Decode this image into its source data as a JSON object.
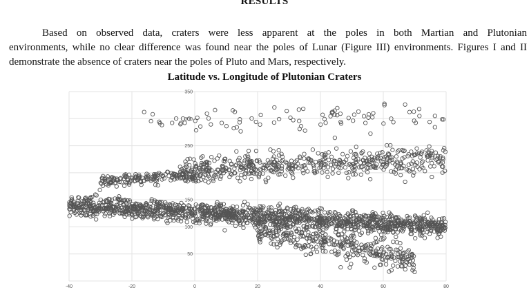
{
  "section_heading": "RESULTS",
  "paragraph": {
    "line1": "Based on observed data, craters were less apparent at the poles in both Martian and Plutonian",
    "rest": "environments, while no clear difference was found near the poles of Lunar (Figure III) environments. Figures I and II demonstrate the absence of craters near the poles of Pluto and Mars, respectively."
  },
  "chart_data": {
    "type": "scatter",
    "title": "Latitude vs. Longitude of Plutonian Craters",
    "xlabel": "",
    "ylabel": "",
    "xlim": [
      -40,
      80
    ],
    "ylim": [
      0,
      350
    ],
    "x_ticks": [
      -40,
      -20,
      0,
      20,
      40,
      60,
      80
    ],
    "y_ticks": [
      50,
      100,
      150,
      200,
      250,
      300,
      350
    ],
    "grid": true,
    "marker": "open-circle",
    "marker_color": "#555555",
    "series": [
      {
        "clusters": [
          {
            "x_range": [
              -40,
              80
            ],
            "y_center_start": 140,
            "y_center_end": 100,
            "y_spread": 22,
            "count": 1500
          },
          {
            "x_range": [
              -5,
              80
            ],
            "y_center_start": 205,
            "y_center_end": 225,
            "y_spread": 30,
            "count": 550
          },
          {
            "x_range": [
              -30,
              0
            ],
            "y_center_start": 185,
            "y_center_end": 195,
            "y_spread": 12,
            "count": 160
          },
          {
            "x_range": [
              20,
              70
            ],
            "y_center_start": 95,
            "y_center_end": 40,
            "y_spread": 30,
            "count": 350
          },
          {
            "x_range": [
              -20,
              80
            ],
            "y_center_start": 300,
            "y_center_end": 300,
            "y_spread": 30,
            "count": 90
          }
        ]
      }
    ]
  }
}
